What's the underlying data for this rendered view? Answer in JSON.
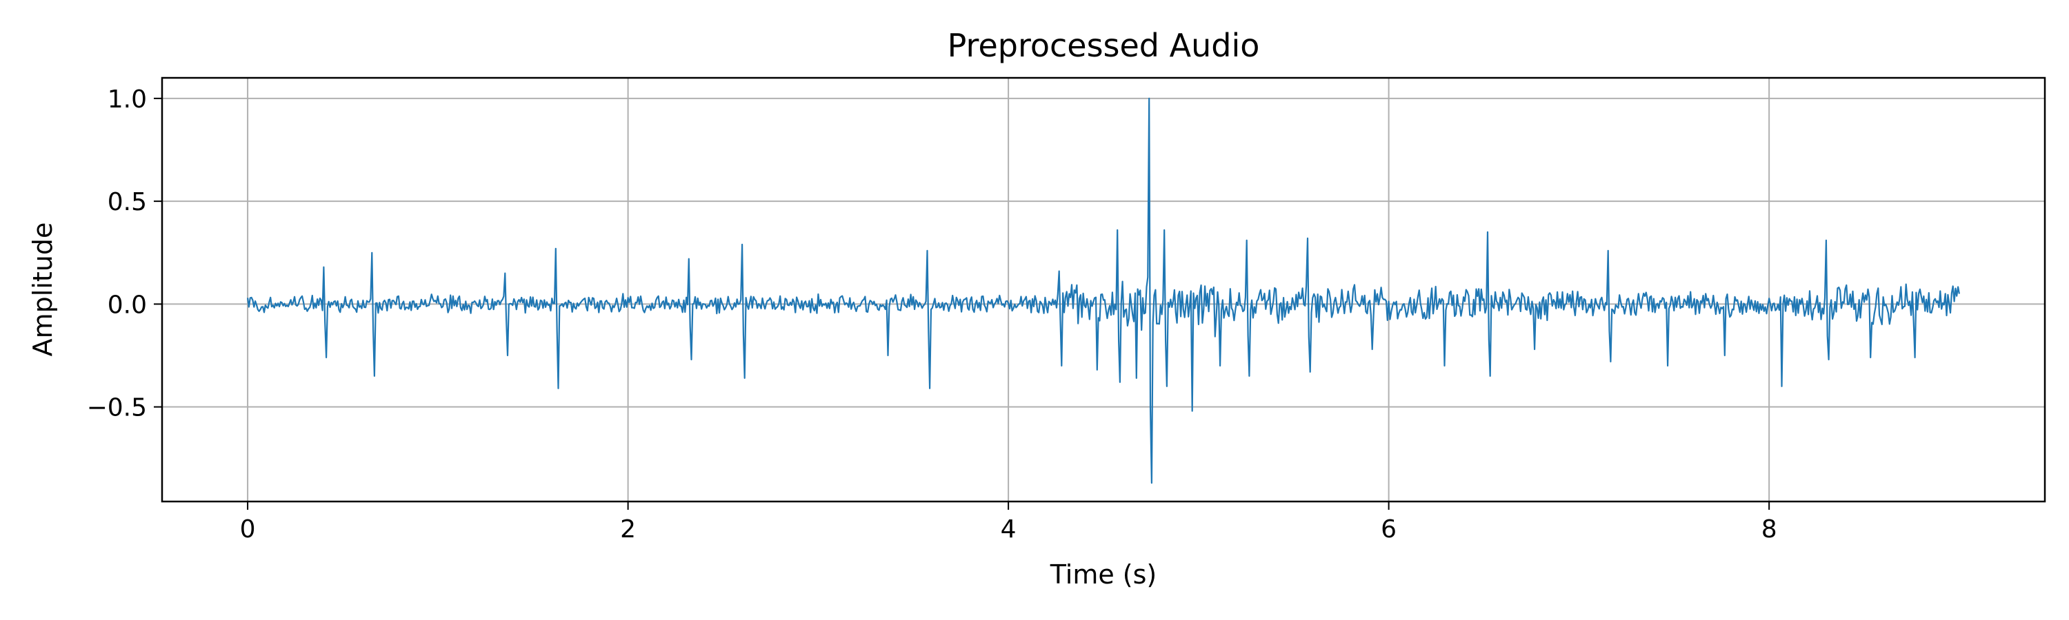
{
  "chart_data": {
    "type": "line",
    "title": "Preprocessed Audio",
    "xlabel": "Time (s)",
    "ylabel": "Amplitude",
    "xlim": [
      -0.45,
      9.45
    ],
    "ylim": [
      -0.96,
      1.1
    ],
    "xticks": [
      0,
      2,
      4,
      6,
      8
    ],
    "xtick_labels": [
      "0",
      "2",
      "4",
      "6",
      "8"
    ],
    "yticks": [
      -0.5,
      0.0,
      0.5,
      1.0
    ],
    "ytick_labels": [
      "−0.5",
      "0.0",
      "0.5",
      "1.0"
    ],
    "grid": true,
    "legend": "none",
    "series": [
      {
        "color": "#1f77b4",
        "duration_s": 9.0,
        "x": [
          0,
          0.4,
          0.65,
          1.35,
          1.62,
          2.32,
          2.6,
          3.35,
          3.57,
          4.27,
          4.45,
          4.57,
          4.66,
          4.74,
          4.82,
          4.95,
          5.1,
          5.25,
          5.57,
          5.9,
          6.28,
          6.52,
          6.75,
          7.15,
          7.45,
          7.75,
          8.05,
          8.3,
          8.52,
          8.75,
          9.0
        ],
        "y": [
          0.03,
          -0.26,
          -0.35,
          -0.25,
          -0.41,
          -0.27,
          -0.36,
          -0.25,
          -0.41,
          -0.3,
          -0.32,
          -0.38,
          -0.36,
          -0.87,
          -0.4,
          -0.52,
          -0.3,
          -0.35,
          -0.33,
          -0.22,
          -0.3,
          -0.35,
          -0.22,
          -0.28,
          -0.3,
          -0.25,
          -0.4,
          -0.27,
          -0.26,
          -0.26,
          0.05
        ],
        "peaks": [
          {
            "x": 0.4,
            "y": 0.18
          },
          {
            "x": 0.65,
            "y": 0.25
          },
          {
            "x": 1.35,
            "y": 0.15
          },
          {
            "x": 1.62,
            "y": 0.27
          },
          {
            "x": 2.32,
            "y": 0.22
          },
          {
            "x": 2.6,
            "y": 0.29
          },
          {
            "x": 3.57,
            "y": 0.26
          },
          {
            "x": 4.27,
            "y": 0.16
          },
          {
            "x": 4.57,
            "y": 0.36
          },
          {
            "x": 4.74,
            "y": 1.0
          },
          {
            "x": 4.82,
            "y": 0.36
          },
          {
            "x": 5.25,
            "y": 0.31
          },
          {
            "x": 5.57,
            "y": 0.32
          },
          {
            "x": 6.52,
            "y": 0.35
          },
          {
            "x": 7.15,
            "y": 0.26
          },
          {
            "x": 8.3,
            "y": 0.31
          }
        ]
      }
    ]
  }
}
